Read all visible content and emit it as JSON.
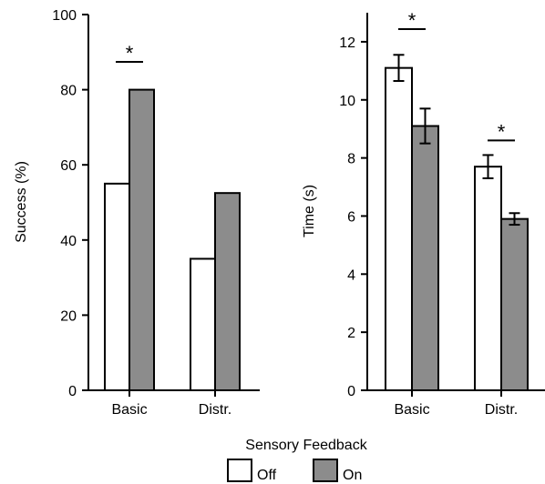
{
  "chart_data": [
    {
      "type": "bar",
      "categories": [
        "Basic",
        "Distr."
      ],
      "series": [
        {
          "name": "Off",
          "values": [
            55,
            35
          ]
        },
        {
          "name": "On",
          "values": [
            80,
            52.5
          ]
        }
      ],
      "ylabel": "Success (%)",
      "ylim": [
        0,
        100
      ],
      "yticks": [
        0,
        20,
        40,
        60,
        80,
        100
      ],
      "significance": [
        {
          "category": "Basic",
          "label": "*"
        }
      ],
      "grid": false
    },
    {
      "type": "bar",
      "categories": [
        "Basic",
        "Distr."
      ],
      "series": [
        {
          "name": "Off",
          "values": [
            11.1,
            7.7
          ],
          "errors": [
            0.45,
            0.4
          ]
        },
        {
          "name": "On",
          "values": [
            9.1,
            5.9
          ],
          "errors": [
            0.6,
            0.2
          ]
        }
      ],
      "ylabel": "Time (s)",
      "ylim": [
        0,
        13
      ],
      "yticks": [
        0,
        2,
        4,
        6,
        8,
        10,
        12
      ],
      "significance": [
        {
          "category": "Basic",
          "label": "*"
        },
        {
          "category": "Distr.",
          "label": "*"
        }
      ],
      "grid": false
    }
  ],
  "legend": {
    "title": "Sensory Feedback",
    "position": "bottom-center",
    "items": [
      {
        "label": "Off",
        "color": "#ffffff"
      },
      {
        "label": "On",
        "color": "#8c8c8c"
      }
    ]
  },
  "colors": {
    "off": "#ffffff",
    "on": "#8c8c8c",
    "stroke": "#000000"
  }
}
